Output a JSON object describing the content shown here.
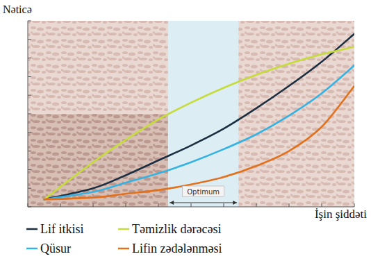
{
  "chart_data": {
    "type": "line",
    "x_label": "İşin şiddəti",
    "y_label": "Nəticə",
    "x": [
      0.5,
      2,
      3,
      4,
      5,
      6,
      7,
      8,
      9,
      10
    ],
    "series": [
      {
        "name": "Lif itkisi",
        "color": "#1c2f42",
        "values": [
          0.4,
          1.0,
          1.7,
          2.5,
          3.3,
          4.2,
          5.3,
          6.5,
          7.8,
          9.3
        ]
      },
      {
        "name": "Təmizlik dərəcəsi",
        "color": "#c6dc3a",
        "values": [
          0.4,
          2.4,
          3.6,
          4.7,
          5.6,
          6.4,
          7.1,
          7.7,
          8.2,
          8.6
        ]
      },
      {
        "name": "Qüsur",
        "color": "#35b2e2",
        "values": [
          0.4,
          0.8,
          1.3,
          1.8,
          2.4,
          3.1,
          3.9,
          4.9,
          6.1,
          7.6
        ]
      },
      {
        "name": "Lifin zədələnməsi",
        "color": "#e2711d",
        "values": [
          0.4,
          0.5,
          0.7,
          0.9,
          1.2,
          1.6,
          2.2,
          3.0,
          4.3,
          6.5
        ]
      }
    ],
    "annotations": [
      {
        "text": "Optimum",
        "x": [
          4.3,
          6.45
        ]
      }
    ],
    "xlim": [
      0,
      10
    ],
    "ylim": [
      0,
      10
    ],
    "xticks": [
      0,
      1,
      2,
      3,
      4,
      5,
      6,
      7,
      8,
      9,
      10
    ],
    "yticks": [
      0,
      1,
      2,
      3,
      4,
      5,
      6,
      7,
      8,
      9,
      10
    ],
    "tick_labels": false,
    "grid": false,
    "legend": "bottom"
  }
}
